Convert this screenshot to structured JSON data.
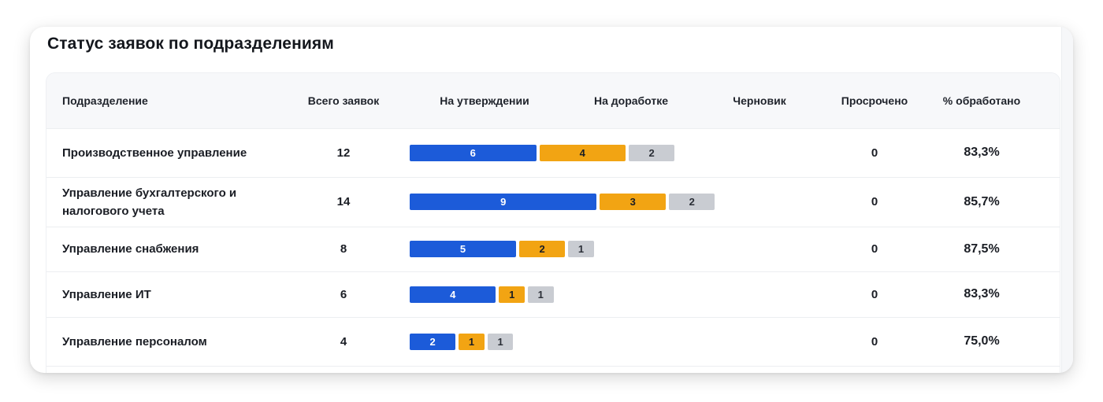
{
  "title": "Статус заявок по подразделениям",
  "columns": {
    "department": "Подразделение",
    "total": "Всего заявок",
    "approval": "На утверждении",
    "revision": "На доработке",
    "draft": "Черновик",
    "overdue": "Просрочено",
    "processed": "% обработано"
  },
  "colors": {
    "approval": "#1c5bd9",
    "revision": "#f2a413",
    "draft": "#c9ccd2"
  },
  "rows": [
    {
      "name": "Производственное управление",
      "total": "12",
      "approval": 6,
      "revision": 4,
      "draft": 2,
      "overdue": "0",
      "processed": "83,3%"
    },
    {
      "name": "Управление бухгалтерского и налогового учета",
      "total": "14",
      "approval": 9,
      "revision": 3,
      "draft": 2,
      "overdue": "0",
      "processed": "85,7%"
    },
    {
      "name": "Управление снабжения",
      "total": "8",
      "approval": 5,
      "revision": 2,
      "draft": 1,
      "overdue": "0",
      "processed": "87,5%"
    },
    {
      "name": "Управление ИТ",
      "total": "6",
      "approval": 4,
      "revision": 1,
      "draft": 1,
      "overdue": "0",
      "processed": "83,3%"
    },
    {
      "name": "Управление персоналом",
      "total": "4",
      "approval": 2,
      "revision": 1,
      "draft": 1,
      "overdue": "0",
      "processed": "75,0%"
    }
  ]
}
